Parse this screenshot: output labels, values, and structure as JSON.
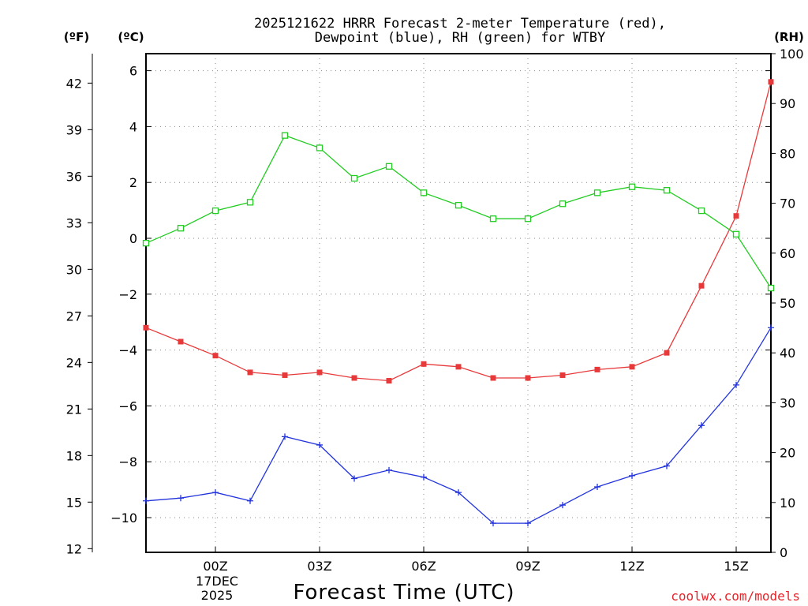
{
  "chart_data": {
    "type": "line",
    "title": "2025121622 HRRR Forecast 2-meter Temperature (red),",
    "subtitle": "Dewpoint (blue), RH (green) for WTBY",
    "xlabel": "Forecast Time (UTC)",
    "left_outer_label": "(ºF)",
    "left_inner_label": "(ºC)",
    "right_label": "(RH)",
    "credit": "coolwx.com/models",
    "x": [
      -2,
      -1,
      0,
      1,
      2,
      3,
      4,
      5,
      6,
      7,
      8,
      9,
      10,
      11,
      12,
      13,
      14,
      15,
      16
    ],
    "xlim": [
      -2,
      16
    ],
    "x_ticks": [
      {
        "x": 0,
        "label": "00Z"
      },
      {
        "x": 3,
        "label": "03Z"
      },
      {
        "x": 6,
        "label": "06Z"
      },
      {
        "x": 9,
        "label": "09Z"
      },
      {
        "x": 12,
        "label": "12Z"
      },
      {
        "x": 15,
        "label": "15Z"
      }
    ],
    "x_date_lines": [
      "17DEC",
      "2025"
    ],
    "ylim_c": [
      -11.15,
      6.65
    ],
    "y_ticks_c": [
      6,
      4,
      2,
      0,
      -2,
      -4,
      -6,
      -8,
      -10
    ],
    "y_ticks_c_labels": [
      "6",
      "4",
      "2",
      "0",
      "−2",
      "−4",
      "−6",
      "−8",
      "−10"
    ],
    "ylim_f": [
      12,
      44
    ],
    "y_ticks_f": [
      42,
      39,
      36,
      33,
      30,
      27,
      24,
      21,
      18,
      15,
      12
    ],
    "y_ticks_f_labels": [
      "42",
      "39",
      "36",
      "33",
      "30",
      "27",
      "24",
      "21",
      "18",
      "15",
      "12"
    ],
    "ylim_rh": [
      0,
      100
    ],
    "y_ticks_rh": [
      0,
      10,
      20,
      30,
      40,
      50,
      60,
      70,
      80,
      90,
      100
    ],
    "y_ticks_rh_labels": [
      "0",
      "10",
      "20",
      "30",
      "40",
      "50",
      "60",
      "70",
      "80",
      "90",
      "100"
    ],
    "series": [
      {
        "name": "2-meter Temperature",
        "axis": "c",
        "color": "#e8393a",
        "marker": "filled-square",
        "values": [
          -3.2,
          -3.7,
          -4.2,
          -4.8,
          -4.9,
          -4.8,
          -5.0,
          -5.1,
          -4.5,
          -4.6,
          -5.0,
          -5.0,
          -4.9,
          -4.7,
          -4.6,
          -4.1,
          -1.7,
          0.8,
          5.6
        ]
      },
      {
        "name": "Dewpoint",
        "axis": "c",
        "color": "#2233dd",
        "marker": "plus",
        "values": [
          -9.4,
          -9.3,
          -9.1,
          -9.4,
          -7.1,
          -7.4,
          -8.6,
          -8.3,
          -8.55,
          -9.1,
          -10.2,
          -10.2,
          -9.55,
          -8.9,
          -8.5,
          -8.15,
          -6.7,
          -5.25,
          -3.2
        ]
      },
      {
        "name": "RH",
        "axis": "rh",
        "color": "#22cc22",
        "marker": "open-square",
        "values": [
          62,
          65,
          68.5,
          70.2,
          83.6,
          81.1,
          75,
          77.4,
          72.1,
          69.6,
          66.9,
          66.9,
          69.9,
          72.1,
          73.3,
          72.6,
          68.5,
          63.8,
          53
        ]
      }
    ]
  }
}
